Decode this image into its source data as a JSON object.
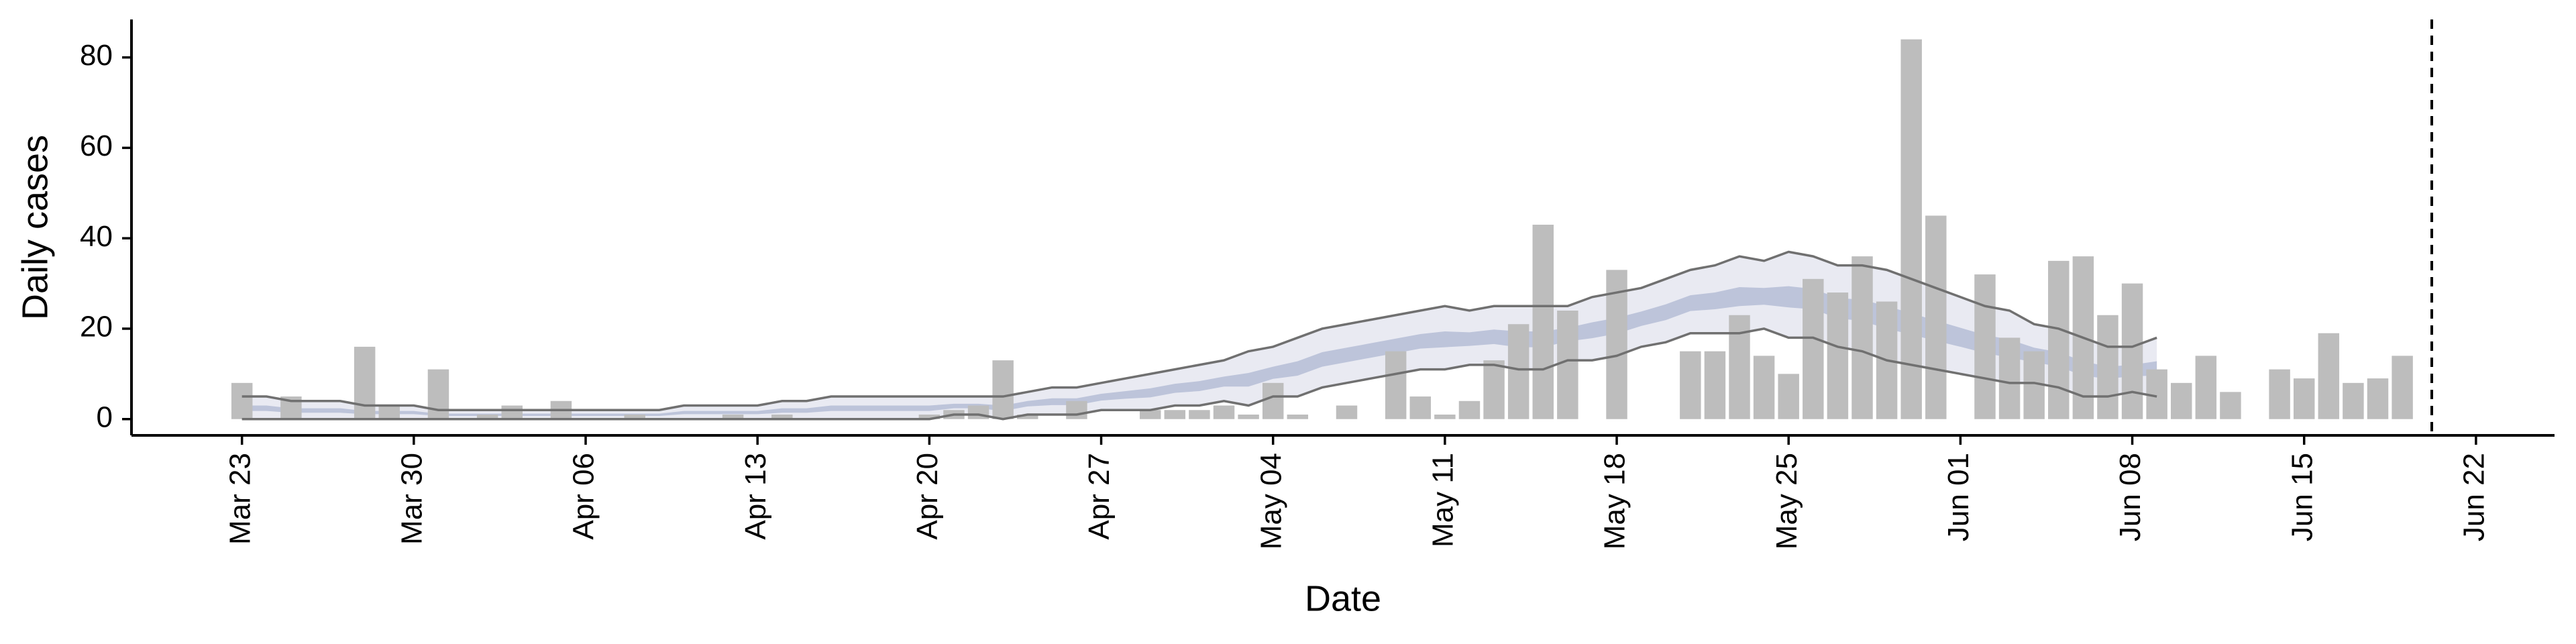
{
  "chart_data": {
    "type": "bar",
    "y_label": "Daily cases",
    "x_label": "Date",
    "categories": [
      "Mar 23",
      null,
      null,
      null,
      null,
      null,
      null,
      "Mar 30",
      null,
      null,
      null,
      null,
      null,
      null,
      "Apr 06",
      null,
      null,
      null,
      null,
      null,
      null,
      "Apr 13",
      null,
      null,
      null,
      null,
      null,
      null,
      "Apr 20",
      null,
      null,
      null,
      null,
      null,
      null,
      "Apr 27",
      null,
      null,
      null,
      null,
      null,
      null,
      "May 04",
      null,
      null,
      null,
      null,
      null,
      null,
      "May 11",
      null,
      null,
      null,
      null,
      null,
      null,
      "May 18",
      null,
      null,
      null,
      null,
      null,
      null,
      "May 25",
      null,
      null,
      null,
      null,
      null,
      null,
      "Jun 01",
      null,
      null,
      null,
      null,
      null,
      null,
      "Jun 08",
      null,
      null,
      null,
      null,
      null,
      null,
      "Jun 15",
      null,
      null,
      null,
      null,
      null,
      null,
      "Jun 22"
    ],
    "values": [
      8,
      0,
      5,
      0,
      0,
      16,
      3,
      0,
      11,
      0,
      1,
      3,
      0,
      4,
      0,
      0,
      1,
      0,
      0,
      0,
      1,
      0,
      1,
      0,
      0,
      0,
      0,
      0,
      1,
      2,
      3,
      13,
      1,
      0,
      4,
      0,
      0,
      2,
      2,
      2,
      3,
      1,
      8,
      1,
      0,
      3,
      0,
      15,
      5,
      1,
      4,
      13,
      21,
      43,
      24,
      0,
      33,
      0,
      0,
      15,
      15,
      23,
      14,
      10,
      31,
      28,
      36,
      26,
      84,
      45,
      0,
      32,
      18,
      15,
      35,
      36,
      23,
      30,
      11,
      8,
      14,
      6,
      0,
      11,
      9,
      19,
      8,
      9,
      14,
      null,
      null,
      null
    ],
    "color": "#bdbdbd",
    "bands": [
      {
        "lower": [
          0,
          0,
          0,
          0,
          0,
          0,
          0,
          0,
          0,
          0,
          0,
          0,
          0,
          0,
          0,
          0,
          0,
          0,
          0,
          0,
          0,
          0,
          0,
          0,
          0,
          0,
          0,
          0,
          0,
          1,
          1,
          0,
          1,
          1,
          1,
          2,
          2,
          2,
          3,
          3,
          4,
          3,
          5,
          5,
          7,
          8,
          9,
          10,
          11,
          11,
          12,
          12,
          11,
          11,
          13,
          13,
          14,
          16,
          17,
          19,
          19,
          19,
          20,
          18,
          18,
          16,
          15,
          13,
          12,
          11,
          10,
          9,
          8,
          8,
          7,
          5,
          5,
          6,
          5,
          null,
          null,
          null,
          null,
          null,
          null,
          null,
          null,
          null,
          null,
          null,
          null,
          null
        ],
        "upper": [
          5,
          5,
          4,
          4,
          4,
          3,
          3,
          3,
          2,
          2,
          2,
          2,
          2,
          2,
          2,
          2,
          2,
          2,
          3,
          3,
          3,
          3,
          4,
          4,
          5,
          5,
          5,
          5,
          5,
          5,
          5,
          5,
          6,
          7,
          7,
          8,
          9,
          10,
          11,
          12,
          13,
          15,
          16,
          18,
          20,
          21,
          22,
          23,
          24,
          25,
          24,
          25,
          25,
          25,
          25,
          27,
          28,
          29,
          31,
          33,
          34,
          36,
          35,
          37,
          36,
          34,
          34,
          33,
          31,
          29,
          27,
          25,
          24,
          21,
          20,
          18,
          16,
          16,
          18,
          null,
          null,
          null,
          null,
          null,
          null,
          null,
          null,
          null,
          null,
          null,
          null,
          null
        ],
        "color": "#e9eaf2",
        "edge_color": "#707070"
      },
      {
        "lower": [
          1.8,
          1.8,
          1.4,
          1.4,
          1.4,
          1.1,
          1.1,
          1.1,
          0.7,
          0.7,
          0.7,
          0.7,
          0.7,
          0.7,
          0.7,
          0.7,
          0.7,
          0.7,
          1.1,
          1.1,
          1.1,
          1.1,
          1.4,
          1.4,
          1.8,
          1.8,
          1.8,
          1.8,
          1.8,
          2.4,
          2.4,
          1.8,
          2.8,
          3.1,
          3.1,
          4.1,
          4.5,
          4.8,
          5.8,
          6.2,
          7.2,
          7.2,
          8.9,
          9.6,
          11.6,
          12.6,
          13.6,
          14.6,
          15.6,
          15.9,
          16.2,
          16.6,
          15.9,
          15.9,
          17.2,
          17.9,
          18.9,
          20.6,
          21.9,
          23.9,
          24.3,
          25,
          25.3,
          24.7,
          24.3,
          22.3,
          21.7,
          20,
          18.7,
          17.3,
          16,
          14.6,
          13.6,
          12.6,
          11.6,
          9.6,
          8.9,
          9.5,
          9.6,
          null,
          null,
          null,
          null,
          null,
          null,
          null,
          null,
          null,
          null,
          null,
          null,
          null
        ],
        "upper": [
          3,
          3,
          2.4,
          2.4,
          2.4,
          1.8,
          1.8,
          1.8,
          1.2,
          1.2,
          1.2,
          1.2,
          1.2,
          1.2,
          1.2,
          1.2,
          1.2,
          1.2,
          1.8,
          1.8,
          1.8,
          1.8,
          2.4,
          2.4,
          3,
          3,
          3,
          3,
          3,
          3.4,
          3.4,
          3,
          4,
          4.6,
          4.6,
          5.6,
          6.2,
          6.8,
          7.8,
          8.4,
          9.4,
          10.2,
          11.6,
          12.8,
          14.8,
          15.8,
          16.8,
          17.8,
          18.8,
          19.4,
          19.2,
          19.8,
          19.4,
          19.4,
          20.2,
          21.4,
          22.4,
          23.8,
          25.4,
          27.4,
          28,
          29.2,
          29,
          29.4,
          28.8,
          26.8,
          26.4,
          25,
          23.4,
          21.8,
          20.2,
          18.6,
          17.6,
          15.8,
          14.8,
          12.8,
          11.6,
          12,
          12.8,
          null,
          null,
          null,
          null,
          null,
          null,
          null,
          null,
          null,
          null,
          null,
          null,
          null
        ],
        "color": "#a9b3d0",
        "opacity": 0.7
      }
    ],
    "vline": 89.2,
    "xlim": [
      -4.5,
      94.2
    ],
    "ylim": [
      -3.6,
      88.4
    ],
    "yticks": [
      0,
      20,
      40,
      60,
      80
    ]
  }
}
